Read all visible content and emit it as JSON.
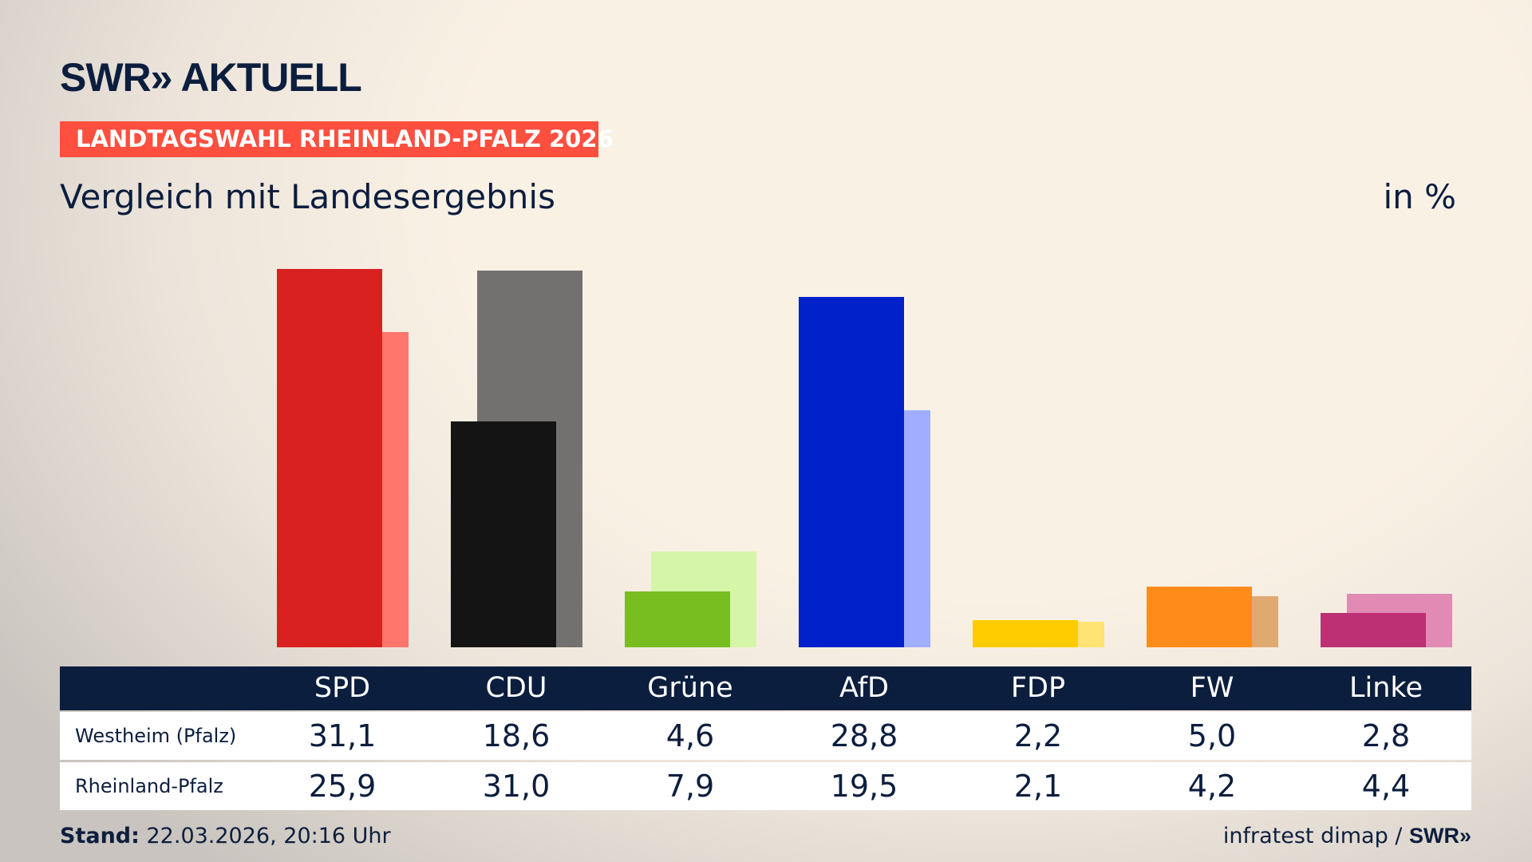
{
  "header": {
    "logo": "SWR» AKTUELL",
    "tag": "LANDTAGSWAHL RHEINLAND-PFALZ 2026",
    "subtitle": "Vergleich mit Landesergebnis",
    "unit": "in %"
  },
  "chart_data": {
    "type": "bar",
    "title": "Vergleich mit Landesergebnis",
    "ylabel": "in %",
    "ylim": [
      0,
      31.1
    ],
    "categories": [
      "SPD",
      "CDU",
      "Grüne",
      "AfD",
      "FDP",
      "FW",
      "Linke"
    ],
    "series": [
      {
        "name": "Westheim (Pfalz)",
        "values": [
          31.1,
          18.6,
          4.6,
          28.8,
          2.2,
          5.0,
          2.8
        ],
        "display": [
          "31,1",
          "18,6",
          "4,6",
          "28,8",
          "2,2",
          "5,0",
          "2,8"
        ],
        "colors": [
          "#d8201f",
          "#141414",
          "#78be20",
          "#0021c9",
          "#ffcc00",
          "#ff8c1a",
          "#be3074"
        ]
      },
      {
        "name": "Rheinland-Pfalz",
        "values": [
          25.9,
          31.0,
          7.9,
          19.5,
          2.1,
          4.2,
          4.4
        ],
        "display": [
          "25,9",
          "31,0",
          "7,9",
          "19,5",
          "2,1",
          "4,2",
          "4,4"
        ],
        "colors": [
          "#ff766c",
          "#737170",
          "#d5f5a8",
          "#a1aeff",
          "#ffe373",
          "#dfaa72",
          "#e08ab4"
        ]
      }
    ]
  },
  "footer": {
    "stand_label": "Stand:",
    "stand_value": " 22.03.2026, 20:16 Uhr",
    "source": "infratest dimap / ",
    "source_logo": "SWR»"
  }
}
